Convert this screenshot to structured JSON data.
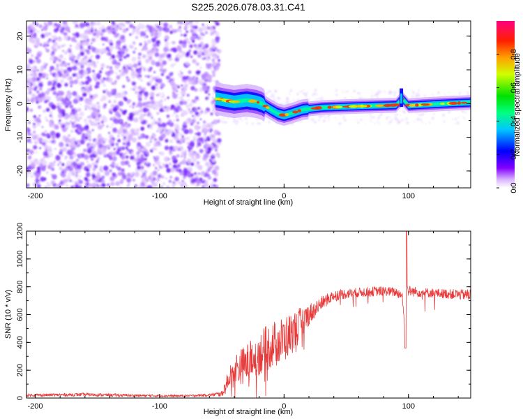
{
  "title": "S225.2026.078.03.31.C41",
  "colors": {
    "snr_line": "#e83a3a",
    "frame": "#000000"
  },
  "chart_data": [
    {
      "type": "heatmap",
      "xlabel": "Height of straight line (km)",
      "ylabel": "Frequency (Hz)",
      "xlim": [
        -207,
        150
      ],
      "ylim": [
        -25,
        24.5
      ],
      "xticks": [
        -200,
        -100,
        0,
        100
      ],
      "yticks": [
        -20,
        -10,
        0,
        10,
        20
      ],
      "colormap": "rainbow",
      "colorbar": {
        "label": "Normalized spectral amplitude",
        "range": [
          0.0,
          1.0
        ],
        "ticks": [
          "0.0",
          "0.2",
          "0.4",
          "0.6",
          "0.8"
        ]
      },
      "ridge": [
        {
          "x": -55,
          "y": 1.5
        },
        {
          "x": -48,
          "y": 1.0
        },
        {
          "x": -40,
          "y": 0.5
        },
        {
          "x": -30,
          "y": 1.0
        },
        {
          "x": -22,
          "y": 0.5
        },
        {
          "x": -18,
          "y": 0.0
        },
        {
          "x": -12,
          "y": -1.5
        },
        {
          "x": -5,
          "y": -3.0
        },
        {
          "x": 0,
          "y": -3.5
        },
        {
          "x": 5,
          "y": -3.0
        },
        {
          "x": 15,
          "y": -1.8
        },
        {
          "x": 30,
          "y": -1.2
        },
        {
          "x": 60,
          "y": -0.8
        },
        {
          "x": 90,
          "y": -0.5
        },
        {
          "x": 95,
          "y": 1.5
        },
        {
          "x": 100,
          "y": -0.6
        },
        {
          "x": 130,
          "y": 0.0
        },
        {
          "x": 150,
          "y": 0.3
        }
      ],
      "noise_region_xmax": -52
    },
    {
      "type": "line",
      "xlabel": "Height of straight line (km)",
      "ylabel": "SNR (10 * v/v)",
      "xlim": [
        -207,
        150
      ],
      "ylim": [
        0,
        1200
      ],
      "xticks": [
        -200,
        -100,
        0,
        100
      ],
      "yticks": [
        0,
        200,
        400,
        600,
        800,
        1000,
        1200
      ],
      "series": [
        {
          "x": [
            -207,
            -160,
            -120,
            -80,
            -60,
            -50,
            -45,
            -40,
            -30,
            -20,
            -10,
            0,
            10,
            20,
            30,
            40,
            60,
            80,
            90,
            95,
            97,
            98,
            99,
            100,
            110,
            130,
            150
          ],
          "mean": [
            20,
            25,
            18,
            15,
            22,
            30,
            120,
            200,
            250,
            320,
            380,
            420,
            500,
            600,
            680,
            740,
            760,
            770,
            760,
            740,
            500,
            1200,
            800,
            770,
            760,
            750,
            740
          ],
          "noise": [
            10,
            12,
            10,
            8,
            10,
            20,
            80,
            120,
            140,
            160,
            170,
            170,
            140,
            80,
            50,
            40,
            35,
            35,
            35,
            40,
            0,
            0,
            0,
            40,
            35,
            35,
            40
          ]
        }
      ]
    }
  ]
}
